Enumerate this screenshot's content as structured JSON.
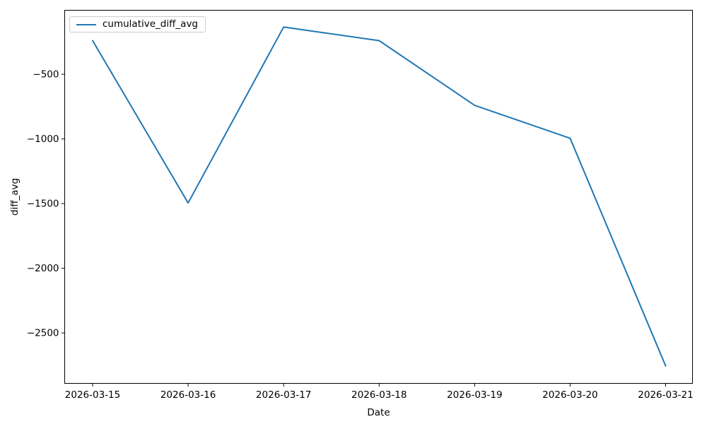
{
  "figure": {
    "background": "#ffffff",
    "axes_edge_color": "#000000",
    "text_color": "#000000"
  },
  "chart_data": {
    "type": "line",
    "title": "",
    "xlabel": "Date",
    "ylabel": "diff_avg",
    "x": [
      "2026-03-15",
      "2026-03-16",
      "2026-03-17",
      "2026-03-18",
      "2026-03-19",
      "2026-03-20",
      "2026-03-21"
    ],
    "series": [
      {
        "name": "cumulative_diff_avg",
        "color": "#1f77b4",
        "values": [
          -240,
          -1495,
          -135,
          -240,
          -740,
          -995,
          -2755
        ]
      }
    ],
    "ylim": [
      -2890,
      -5
    ],
    "yticks": [
      -500,
      -1000,
      -1500,
      -2000,
      -2500
    ],
    "grid": false,
    "legend": {
      "position": "upper left",
      "entries": [
        "cumulative_diff_avg"
      ]
    }
  }
}
